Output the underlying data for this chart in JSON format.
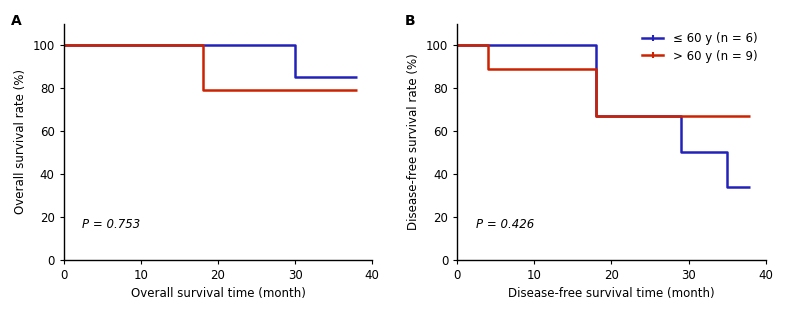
{
  "panel_A": {
    "title": "A",
    "xlabel": "Overall survival time (month)",
    "ylabel": "Overall survival rate (%)",
    "pvalue": "P = 0.753",
    "xlim": [
      0,
      40
    ],
    "ylim": [
      0,
      110
    ],
    "xticks": [
      0,
      10,
      20,
      30,
      40
    ],
    "yticks": [
      0,
      20,
      40,
      60,
      80,
      100
    ],
    "blue_x": [
      0,
      30,
      30,
      38
    ],
    "blue_y": [
      100,
      100,
      85,
      85
    ],
    "red_x": [
      0,
      18,
      18,
      38
    ],
    "red_y": [
      100,
      100,
      79,
      79
    ]
  },
  "panel_B": {
    "title": "B",
    "xlabel": "Disease-free survival time (month)",
    "ylabel": "Disease-free survival rate (%)",
    "pvalue": "P = 0.426",
    "xlim": [
      0,
      40
    ],
    "ylim": [
      0,
      110
    ],
    "xticks": [
      0,
      10,
      20,
      30,
      40
    ],
    "yticks": [
      0,
      20,
      40,
      60,
      80,
      100
    ],
    "blue_x": [
      0,
      18,
      18,
      29,
      29,
      35,
      35,
      38
    ],
    "blue_y": [
      100,
      100,
      67,
      67,
      50,
      50,
      34,
      34
    ],
    "red_x": [
      0,
      4,
      4,
      18,
      18,
      38
    ],
    "red_y": [
      100,
      100,
      89,
      89,
      67,
      67
    ]
  },
  "legend": {
    "blue_label": "≤ 60 y (n = 6)",
    "red_label": "> 60 y (n = 9)"
  },
  "blue_color": "#2222bb",
  "red_color": "#cc2200",
  "line_width": 1.8,
  "fontsize_label": 8.5,
  "fontsize_tick": 8.5,
  "fontsize_pvalue": 8.5,
  "fontsize_title": 10,
  "fontsize_legend": 8.5,
  "background_color": "#ffffff"
}
